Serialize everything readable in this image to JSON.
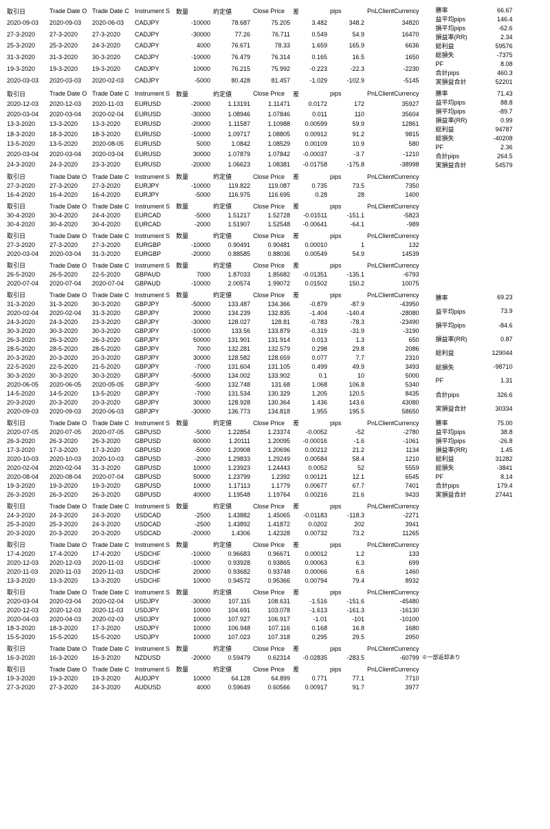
{
  "headers": {
    "date1": "取引日",
    "date2": "Trade Date O",
    "date3": "Trade Date C",
    "inst": "Instrument S",
    "qty": "数量",
    "open": "約定値",
    "close": "Close Price",
    "diff": "差",
    "pips": "pips",
    "pnl": "PnLClientCurrency"
  },
  "side_labels": {
    "win": "勝率",
    "avg_p": "益平均pips",
    "avg_l": "損平均pips",
    "rr": "損益率(RR)",
    "tp": "総利益",
    "tl": "総損失",
    "pf": "PF",
    "sum_pips": "合計pips",
    "sum_pl": "実損益合計"
  },
  "sections": [
    {
      "rows": [
        [
          "2020-09-03",
          "2020-09-03",
          "2020-06-03",
          "CADJPY",
          "-10000",
          "78.687",
          "75.205",
          "3.482",
          "348.2",
          "34820"
        ],
        [
          "27-3-2020",
          "27-3-2020",
          "27-3-2020",
          "CADJPY",
          "-30000",
          "77.26",
          "76.711",
          "0.549",
          "54.9",
          "16470"
        ],
        [
          "25-3-2020",
          "25-3-2020",
          "24-3-2020",
          "CADJPY",
          "4000",
          "76.671",
          "78.33",
          "1.659",
          "165.9",
          "6636"
        ],
        [
          "31-3-2020",
          "31-3-2020",
          "30-3-2020",
          "CADJPY",
          "-10000",
          "76.479",
          "76.314",
          "0.165",
          "16.5",
          "1650"
        ],
        [
          "19-3-2020",
          "19-3-2020",
          "19-3-2020",
          "CADJPY",
          "10000",
          "76.215",
          "75.992",
          "-0.223",
          "-22.3",
          "-2230"
        ],
        [
          "2020-03-03",
          "2020-03-03",
          "2020-02-03",
          "CADJPY",
          "-5000",
          "80.428",
          "81.457",
          "-1.029",
          "-102.9",
          "-5145"
        ]
      ],
      "side": [
        [
          "勝率",
          "66.67"
        ],
        [
          "益平均pips",
          "146.4"
        ],
        [
          "損平均pips",
          "-62.6"
        ],
        [
          "損益率(RR)",
          "2.34"
        ],
        [
          "総利益",
          "59576"
        ],
        [
          "総損失",
          "-7375"
        ],
        [
          "PF",
          "8.08"
        ],
        [
          "合計pips",
          "460.3"
        ],
        [
          "実損益合計",
          "52201"
        ]
      ]
    },
    {
      "rows": [
        [
          "2020-12-03",
          "2020-12-03",
          "2020-11-03",
          "EURUSD",
          "-20000",
          "1.13191",
          "1.11471",
          "0.0172",
          "172",
          "35927"
        ],
        [
          "2020-03-04",
          "2020-03-04",
          "2020-02-04",
          "EURUSD",
          "-30000",
          "1.08946",
          "1.07846",
          "0.011",
          "110",
          "35604"
        ],
        [
          "13-3-2020",
          "13-3-2020",
          "13-3-2020",
          "EURUSD",
          "-20000",
          "1.11587",
          "1.10988",
          "0.00599",
          "59.9",
          "12861"
        ],
        [
          "18-3-2020",
          "18-3-2020",
          "18-3-2020",
          "EURUSD",
          "-10000",
          "1.09717",
          "1.08805",
          "0.00912",
          "91.2",
          "9815"
        ],
        [
          "13-5-2020",
          "13-5-2020",
          "2020-08-05",
          "EURUSD",
          "5000",
          "1.0842",
          "1.08529",
          "0.00109",
          "10.9",
          "580"
        ],
        [
          "2020-03-04",
          "2020-03-04",
          "2020-03-04",
          "EURUSD",
          "30000",
          "1.07879",
          "1.07842",
          "-0.00037",
          "-3.7",
          "-1210"
        ],
        [
          "24-3-2020",
          "24-3-2020",
          "23-3-2020",
          "EURUSD",
          "-20000",
          "1.06623",
          "1.08381",
          "-0.01758",
          "-175.8",
          "-38998"
        ]
      ],
      "side": [
        [
          "勝率",
          "71.43"
        ],
        [
          "益平均pips",
          "88.8"
        ],
        [
          "損平均pips",
          "-89.7"
        ],
        [
          "損益率(RR)",
          "0.99"
        ],
        [
          "総利益",
          "94787"
        ],
        [
          "総損失",
          "-40208"
        ],
        [
          "PF",
          "2.36"
        ],
        [
          "合計pips",
          "264.5"
        ],
        [
          "実損益合計",
          "54579"
        ]
      ]
    },
    {
      "rows": [
        [
          "27-3-2020",
          "27-3-2020",
          "27-3-2020",
          "EURJPY",
          "-10000",
          "119.822",
          "119.087",
          "0.735",
          "73.5",
          "7350"
        ],
        [
          "16-4-2020",
          "16-4-2020",
          "16-4-2020",
          "EURJPY",
          "-5000",
          "116.975",
          "116.695",
          "0.28",
          "28",
          "1400"
        ]
      ],
      "side": []
    },
    {
      "rows": [
        [
          "30-4-2020",
          "30-4-2020",
          "24-4-2020",
          "EURCAD",
          "-5000",
          "1.51217",
          "1.52728",
          "-0.01511",
          "-151.1",
          "-5823"
        ],
        [
          "30-4-2020",
          "30-4-2020",
          "30-4-2020",
          "EURCAD",
          "-2000",
          "1.51907",
          "1.52548",
          "-0.00641",
          "-64.1",
          "-989"
        ]
      ],
      "side": []
    },
    {
      "rows": [
        [
          "27-3-2020",
          "27-3-2020",
          "27-3-2020",
          "EURGBP",
          "-10000",
          "0.90491",
          "0.90481",
          "0.00010",
          "1",
          "132"
        ],
        [
          "2020-03-04",
          "2020-03-04",
          "31-3-2020",
          "EURGBP",
          "-20000",
          "0.88585",
          "0.88036",
          "0.00549",
          "54.9",
          "14539"
        ]
      ],
      "side": []
    },
    {
      "rows": [
        [
          "26-5-2020",
          "26-5-2020",
          "22-5-2020",
          "GBPAUD",
          "7000",
          "1.87033",
          "1.85682",
          "-0.01351",
          "-135.1",
          "-6793"
        ],
        [
          "2020-07-04",
          "2020-07-04",
          "2020-07-04",
          "GBPAUD",
          "-10000",
          "2.00574",
          "1.99072",
          "0.01502",
          "150.2",
          "10075"
        ]
      ],
      "side": []
    },
    {
      "rows": [
        [
          "31-3-2020",
          "31-3-2020",
          "30-3-2020",
          "GBPJPY",
          "-50000",
          "133.487",
          "134.366",
          "-0.879",
          "-87.9",
          "-43950"
        ],
        [
          "2020-02-04",
          "2020-02-04",
          "31-3-2020",
          "GBPJPY",
          "20000",
          "134.239",
          "132.835",
          "-1.404",
          "-140.4",
          "-28080"
        ],
        [
          "24-3-2020",
          "24-3-2020",
          "23-3-2020",
          "GBPJPY",
          "-30000",
          "128.027",
          "128.81",
          "-0.783",
          "-78.3",
          "-23490"
        ],
        [
          "30-3-2020",
          "30-3-2020",
          "30-3-2020",
          "GBPJPY",
          "-10000",
          "133.56",
          "133.879",
          "-0.319",
          "-31.9",
          "-3190"
        ],
        [
          "26-3-2020",
          "26-3-2020",
          "26-3-2020",
          "GBPJPY",
          "50000",
          "131.901",
          "131.914",
          "0.013",
          "1.3",
          "650"
        ],
        [
          "28-5-2020",
          "28-5-2020",
          "28-5-2020",
          "GBPJPY",
          "7000",
          "132.281",
          "132.579",
          "0.298",
          "29.8",
          "2086"
        ],
        [
          "20-3-2020",
          "20-3-2020",
          "20-3-2020",
          "GBPJPY",
          "30000",
          "128.582",
          "128.659",
          "0.077",
          "7.7",
          "2310"
        ],
        [
          "22-5-2020",
          "22-5-2020",
          "21-5-2020",
          "GBPJPY",
          "-7000",
          "131.604",
          "131.105",
          "0.499",
          "49.9",
          "3493"
        ],
        [
          "30-3-2020",
          "30-3-2020",
          "30-3-2020",
          "GBPJPY",
          "-50000",
          "134.002",
          "133.902",
          "0.1",
          "10",
          "5000"
        ],
        [
          "2020-06-05",
          "2020-06-05",
          "2020-05-05",
          "GBPJPY",
          "-5000",
          "132.748",
          "131.68",
          "1.068",
          "106.8",
          "5340"
        ],
        [
          "14-5-2020",
          "14-5-2020",
          "13-5-2020",
          "GBPJPY",
          "-7000",
          "131.534",
          "130.329",
          "1.205",
          "120.5",
          "8435"
        ],
        [
          "20-3-2020",
          "20-3-2020",
          "20-3-2020",
          "GBPJPY",
          "30000",
          "128.928",
          "130.364",
          "1.436",
          "143.6",
          "43080"
        ],
        [
          "2020-09-03",
          "2020-09-03",
          "2020-06-03",
          "GBPJPY",
          "-30000",
          "136.773",
          "134.818",
          "1.955",
          "195.5",
          "58650"
        ]
      ],
      "side": [
        [
          "勝率",
          "69.23"
        ],
        [
          "益平均pips",
          "73.9"
        ],
        [
          "損平均pips",
          "-84.6"
        ],
        [
          "損益率(RR)",
          "0.87"
        ],
        [
          "総利益",
          "129044"
        ],
        [
          "総損失",
          "-98710"
        ],
        [
          "PF",
          "1.31"
        ],
        [
          "合計pips",
          "326.6"
        ],
        [
          "実損益合計",
          "30334"
        ]
      ]
    },
    {
      "rows": [
        [
          "2020-07-05",
          "2020-07-05",
          "2020-07-05",
          "GBPUSD",
          "-5000",
          "1.22854",
          "1.23374",
          "-0.0052",
          "-52",
          "-2780"
        ],
        [
          "26-3-2020",
          "26-3-2020",
          "26-3-2020",
          "GBPUSD",
          "60000",
          "1.20111",
          "1.20095",
          "-0.00016",
          "-1.6",
          "-1061"
        ],
        [
          "17-3-2020",
          "17-3-2020",
          "17-3-2020",
          "GBPUSD",
          "-5000",
          "1.20908",
          "1.20696",
          "0.00212",
          "21.2",
          "1134"
        ],
        [
          "2020-10-03",
          "2020-10-03",
          "2020-10-03",
          "GBPUSD",
          "-2000",
          "1.29833",
          "1.29249",
          "0.00584",
          "58.4",
          "1210"
        ],
        [
          "2020-02-04",
          "2020-02-04",
          "31-3-2020",
          "GBPUSD",
          "10000",
          "1.23923",
          "1.24443",
          "0.0052",
          "52",
          "5559"
        ],
        [
          "2020-08-04",
          "2020-08-04",
          "2020-07-04",
          "GBPUSD",
          "50000",
          "1.23799",
          "1.2392",
          "0.00121",
          "12.1",
          "6545"
        ],
        [
          "19-3-2020",
          "19-3-2020",
          "19-3-2020",
          "GBPUSD",
          "10000",
          "1.17113",
          "1.1779",
          "0.00677",
          "67.7",
          "7401"
        ],
        [
          "26-3-2020",
          "26-3-2020",
          "26-3-2020",
          "GBPUSD",
          "40000",
          "1.19548",
          "1.19764",
          "0.00216",
          "21.6",
          "9433"
        ]
      ],
      "side": [
        [
          "勝率",
          "75.00"
        ],
        [
          "益平均pips",
          "38.8"
        ],
        [
          "損平均pips",
          "-26.8"
        ],
        [
          "損益率(RR)",
          "1.45"
        ],
        [
          "総利益",
          "31282"
        ],
        [
          "総損失",
          "-3841"
        ],
        [
          "PF",
          "8.14"
        ],
        [
          "合計pips",
          "179.4"
        ],
        [
          "実損益合計",
          "27441"
        ]
      ]
    },
    {
      "rows": [
        [
          "24-3-2020",
          "24-3-2020",
          "24-3-2020",
          "USDCAD",
          "-2500",
          "1.43882",
          "1.45065",
          "-0.01183",
          "-118.3",
          "-2271"
        ],
        [
          "25-3-2020",
          "25-3-2020",
          "24-3-2020",
          "USDCAD",
          "-2500",
          "1.43892",
          "1.41872",
          "0.0202",
          "202",
          "3941"
        ],
        [
          "20-3-2020",
          "20-3-2020",
          "20-3-2020",
          "USDCAD",
          "-20000",
          "1.4306",
          "1.42328",
          "0.00732",
          "73.2",
          "11265"
        ]
      ],
      "side": []
    },
    {
      "rows": [
        [
          "17-4-2020",
          "17-4-2020",
          "17-4-2020",
          "USDCHF",
          "-10000",
          "0.96683",
          "0.96671",
          "0.00012",
          "1.2",
          "133"
        ],
        [
          "2020-12-03",
          "2020-12-03",
          "2020-11-03",
          "USDCHF",
          "-10000",
          "0.93928",
          "0.93865",
          "0.00063",
          "6.3",
          "699"
        ],
        [
          "2020-11-03",
          "2020-11-03",
          "2020-11-03",
          "USDCHF",
          "20000",
          "0.93682",
          "0.93748",
          "0.00066",
          "6.6",
          "1460"
        ],
        [
          "13-3-2020",
          "13-3-2020",
          "13-3-2020",
          "USDCHF",
          "10000",
          "0.94572",
          "0.95366",
          "0.00794",
          "79.4",
          "8932"
        ]
      ],
      "side": []
    },
    {
      "rows": [
        [
          "2020-03-04",
          "2020-03-04",
          "2020-02-04",
          "USDJPY",
          "-30000",
          "107.115",
          "108.631",
          "-1.516",
          "-151.6",
          "-45480"
        ],
        [
          "2020-12-03",
          "2020-12-03",
          "2020-11-03",
          "USDJPY",
          "10000",
          "104.691",
          "103.078",
          "-1.613",
          "-161.3",
          "-16130"
        ],
        [
          "2020-04-03",
          "2020-04-03",
          "2020-02-03",
          "USDJPY",
          "10000",
          "107.927",
          "106.917",
          "-1.01",
          "-101",
          "-10100"
        ],
        [
          "18-3-2020",
          "18-3-2020",
          "17-3-2020",
          "USDJPY",
          "10000",
          "106.948",
          "107.116",
          "0.168",
          "16.8",
          "1680"
        ],
        [
          "15-5-2020",
          "15-5-2020",
          "15-5-2020",
          "USDJPY",
          "10000",
          "107.023",
          "107.318",
          "0.295",
          "29.5",
          "2950"
        ]
      ],
      "side": []
    },
    {
      "rows": [
        [
          "16-3-2020",
          "16-3-2020",
          "16-3-2020",
          "NZDUSD",
          "-20000",
          "0.59479",
          "0.62314",
          "-0.02835",
          "-283.5",
          "-60799"
        ]
      ],
      "side": [],
      "note": "※一部返却あり"
    },
    {
      "rows": [
        [
          "19-3-2020",
          "19-3-2020",
          "19-3-2020",
          "AUDJPY",
          "10000",
          "64.128",
          "64.899",
          "0.771",
          "77.1",
          "7710"
        ],
        [
          "27-3-2020",
          "27-3-2020",
          "24-3-2020",
          "AUDUSD",
          "4000",
          "0.59649",
          "0.60566",
          "0.00917",
          "91.7",
          "3977"
        ]
      ],
      "side": []
    }
  ]
}
